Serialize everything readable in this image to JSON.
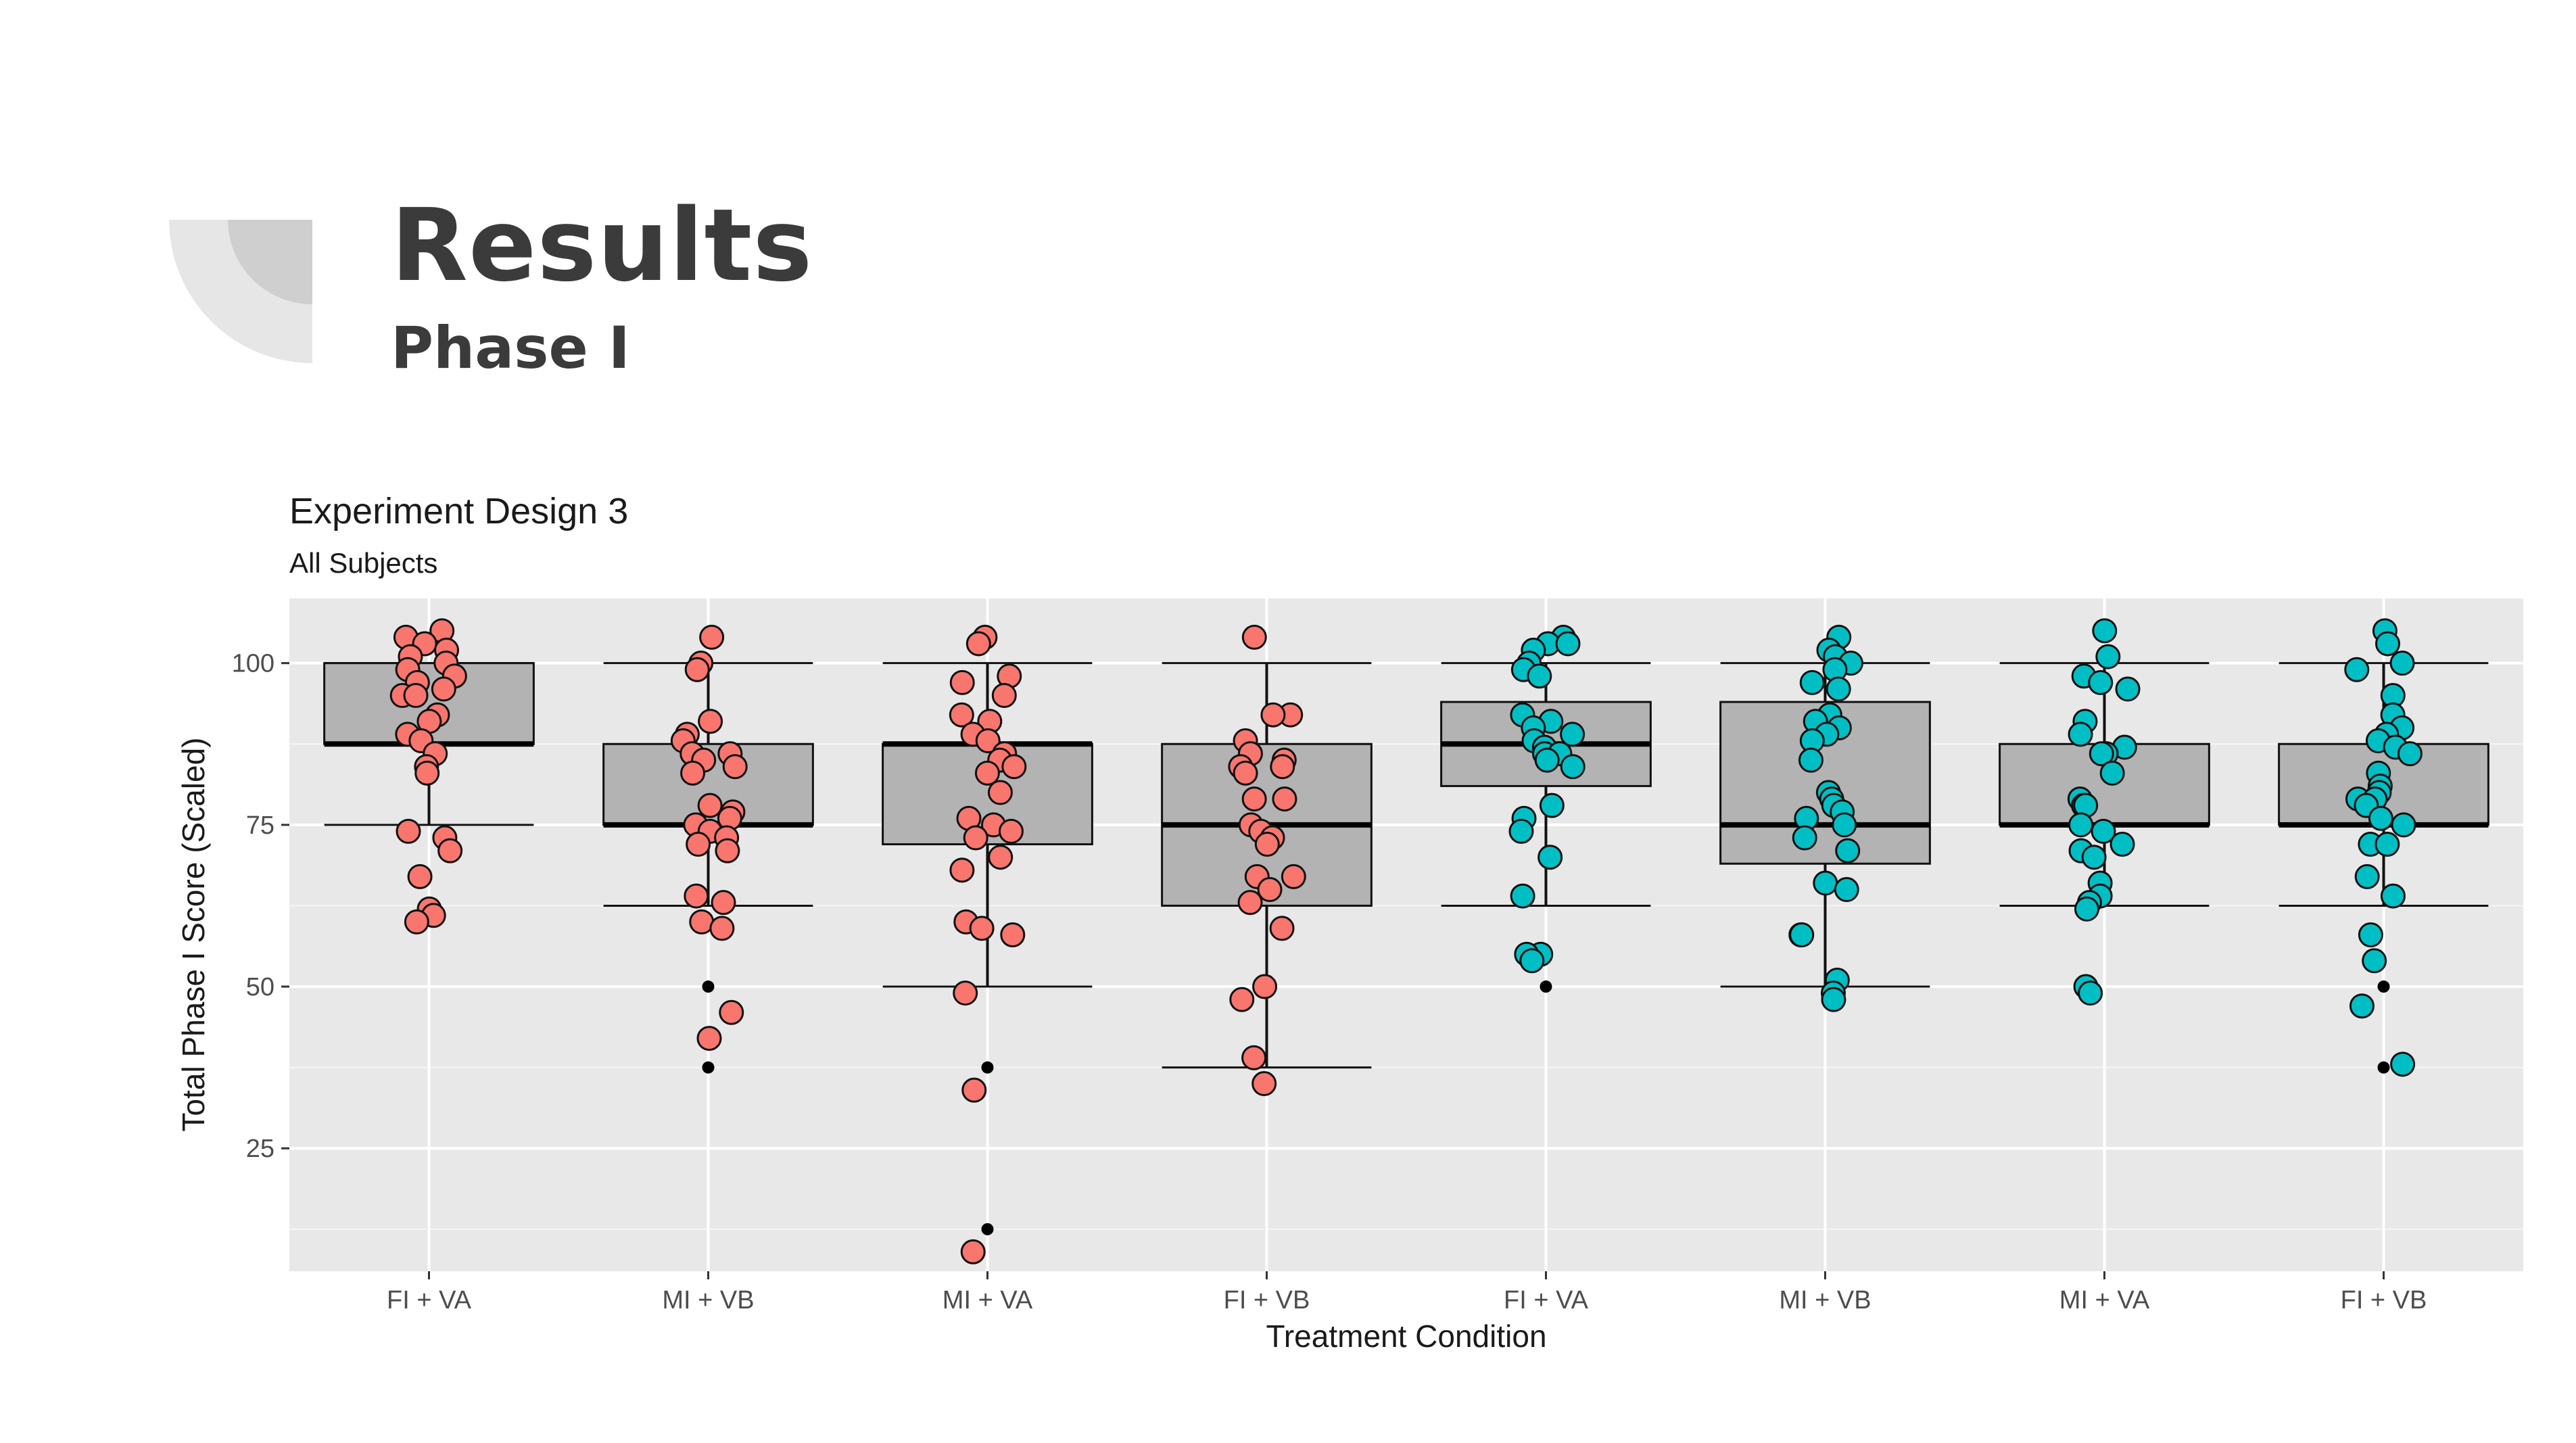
{
  "slide": {
    "title": "Results",
    "subtitle": "Phase I"
  },
  "colors": {
    "panel_background": "#e8e8e8",
    "grid": "#ffffff",
    "box_fill": "#b3b3b3",
    "series_red": "#f8766d",
    "series_teal": "#00bfc4",
    "text": "#1a1a1a",
    "axis_text": "#4d4d4d",
    "slide_text": "#3b3b3b"
  },
  "chart_data": {
    "type": "box",
    "title": "Experiment Design 3",
    "subtitle": "All Subjects",
    "xlabel": "Treatment Condition",
    "ylabel": "Total Phase I Score (Scaled)",
    "ylim": [
      6,
      110
    ],
    "yticks": [
      25,
      50,
      75,
      100
    ],
    "grid": true,
    "legend": "none",
    "categories": [
      "FI + VA",
      "MI + VB",
      "MI + VA",
      "FI + VB",
      "FI + VA",
      "MI + VB",
      "MI + VA",
      "FI + VB"
    ],
    "groups": [
      {
        "label": "FI + VA",
        "color": "#f8766d",
        "box": {
          "whisker_low": 75,
          "q1": 87.5,
          "median": 87.5,
          "q3": 100,
          "whisker_high": 100
        },
        "outliers": [
          62.5
        ],
        "points": [
          105,
          104,
          103,
          102,
          101,
          100,
          99,
          98,
          97,
          96,
          95,
          95,
          92,
          91,
          89,
          88,
          86,
          84,
          83,
          74,
          73,
          71,
          67,
          62,
          61,
          60
        ]
      },
      {
        "label": "MI + VB",
        "color": "#f8766d",
        "box": {
          "whisker_low": 62.5,
          "q1": 75,
          "median": 75,
          "q3": 87.5,
          "whisker_high": 100
        },
        "outliers": [
          50,
          37.5
        ],
        "points": [
          104,
          100,
          99,
          91,
          89,
          88,
          86,
          86,
          85,
          84,
          83,
          78,
          77,
          76,
          75,
          74,
          73,
          72,
          71,
          64,
          63,
          60,
          59,
          46,
          42
        ]
      },
      {
        "label": "MI + VA",
        "color": "#f8766d",
        "box": {
          "whisker_low": 50,
          "q1": 72,
          "median": 87.5,
          "q3": 87.5,
          "whisker_high": 100
        },
        "outliers": [
          37.5,
          12.5
        ],
        "points": [
          104,
          103,
          98,
          97,
          95,
          92,
          91,
          89,
          88,
          86,
          85,
          84,
          83,
          80,
          76,
          75,
          74,
          73,
          70,
          68,
          60,
          59,
          58,
          49,
          34,
          9
        ]
      },
      {
        "label": "FI + VB",
        "color": "#f8766d",
        "box": {
          "whisker_low": 37.5,
          "q1": 62.5,
          "median": 75,
          "q3": 87.5,
          "whisker_high": 100
        },
        "outliers": [],
        "points": [
          104,
          92,
          92,
          88,
          86,
          85,
          84,
          84,
          83,
          79,
          79,
          75,
          74,
          73,
          72,
          67,
          67,
          65,
          63,
          59,
          50,
          48,
          39,
          35
        ]
      },
      {
        "label": "FI + VA",
        "color": "#00bfc4",
        "box": {
          "whisker_low": 62.5,
          "q1": 81,
          "median": 87.5,
          "q3": 94,
          "whisker_high": 100
        },
        "outliers": [
          50
        ],
        "points": [
          104,
          103,
          103,
          102,
          100,
          99,
          98,
          92,
          91,
          90,
          89,
          88,
          87,
          86,
          86,
          85,
          84,
          78,
          76,
          74,
          70,
          64,
          55,
          55,
          54
        ]
      },
      {
        "label": "MI + VB",
        "color": "#00bfc4",
        "box": {
          "whisker_low": 50,
          "q1": 69,
          "median": 75,
          "q3": 94,
          "whisker_high": 100
        },
        "outliers": [],
        "points": [
          104,
          102,
          101,
          100,
          99,
          97,
          96,
          92,
          91,
          90,
          89,
          88,
          85,
          80,
          79,
          78,
          77,
          76,
          75,
          73,
          71,
          66,
          65,
          58,
          58,
          51,
          49,
          48
        ]
      },
      {
        "label": "MI + VA",
        "color": "#00bfc4",
        "box": {
          "whisker_low": 62.5,
          "q1": 75,
          "median": 75,
          "q3": 87.5,
          "whisker_high": 100
        },
        "outliers": [],
        "points": [
          105,
          101,
          98,
          97,
          96,
          91,
          89,
          87,
          86,
          86,
          83,
          79,
          78,
          78,
          75,
          74,
          72,
          71,
          70,
          66,
          64,
          63,
          62,
          50,
          49
        ]
      },
      {
        "label": "FI + VB",
        "color": "#00bfc4",
        "box": {
          "whisker_low": 62.5,
          "q1": 75,
          "median": 75,
          "q3": 87.5,
          "whisker_high": 100
        },
        "outliers": [
          50,
          37.5
        ],
        "points": [
          105,
          103,
          100,
          99,
          95,
          92,
          90,
          89,
          88,
          87,
          86,
          83,
          81,
          80,
          79,
          79,
          78,
          76,
          75,
          72,
          72,
          67,
          64,
          58,
          54,
          47,
          38
        ]
      }
    ]
  }
}
